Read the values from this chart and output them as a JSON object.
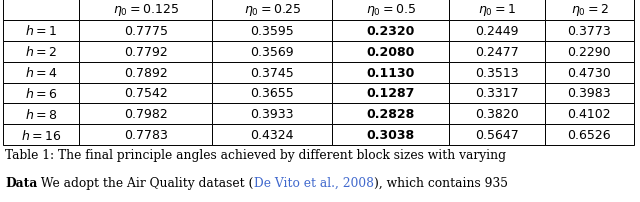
{
  "col_headers": [
    "",
    "$\\eta_0 = 0.125$",
    "$\\eta_0 = 0.25$",
    "$\\eta_0 = 0.5$",
    "$\\eta_0 = 1$",
    "$\\eta_0 = 2$"
  ],
  "row_labels": [
    "$h = 1$",
    "$h = 2$",
    "$h = 4$",
    "$h = 6$",
    "$h = 8$",
    "$h = 16$"
  ],
  "data": [
    [
      "0.7775",
      "0.3595",
      "0.2320",
      "0.2449",
      "0.3773"
    ],
    [
      "0.7792",
      "0.3569",
      "0.2080",
      "0.2477",
      "0.2290"
    ],
    [
      "0.7892",
      "0.3745",
      "0.1130",
      "0.3513",
      "0.4730"
    ],
    [
      "0.7542",
      "0.3655",
      "0.1287",
      "0.3317",
      "0.3983"
    ],
    [
      "0.7982",
      "0.3933",
      "0.2828",
      "0.3820",
      "0.4102"
    ],
    [
      "0.7783",
      "0.4324",
      "0.3038",
      "0.5647",
      "0.6526"
    ]
  ],
  "bold_col": 2,
  "caption_prefix": "Table 1:",
  "caption_rest": " The final principle angles achieved by different block sizes with varying",
  "data_bold": "Data",
  "data_rest_before_link": " We adopt the Air Quality dataset (",
  "data_link": "De Vito et al., 2008",
  "data_rest_after_link": "), which contains 935",
  "bg_color": "#ffffff",
  "border_color": "#000000",
  "text_color": "#000000",
  "link_color": "#4169CD",
  "table_fontsize": 9.0,
  "caption_fontsize": 8.8
}
